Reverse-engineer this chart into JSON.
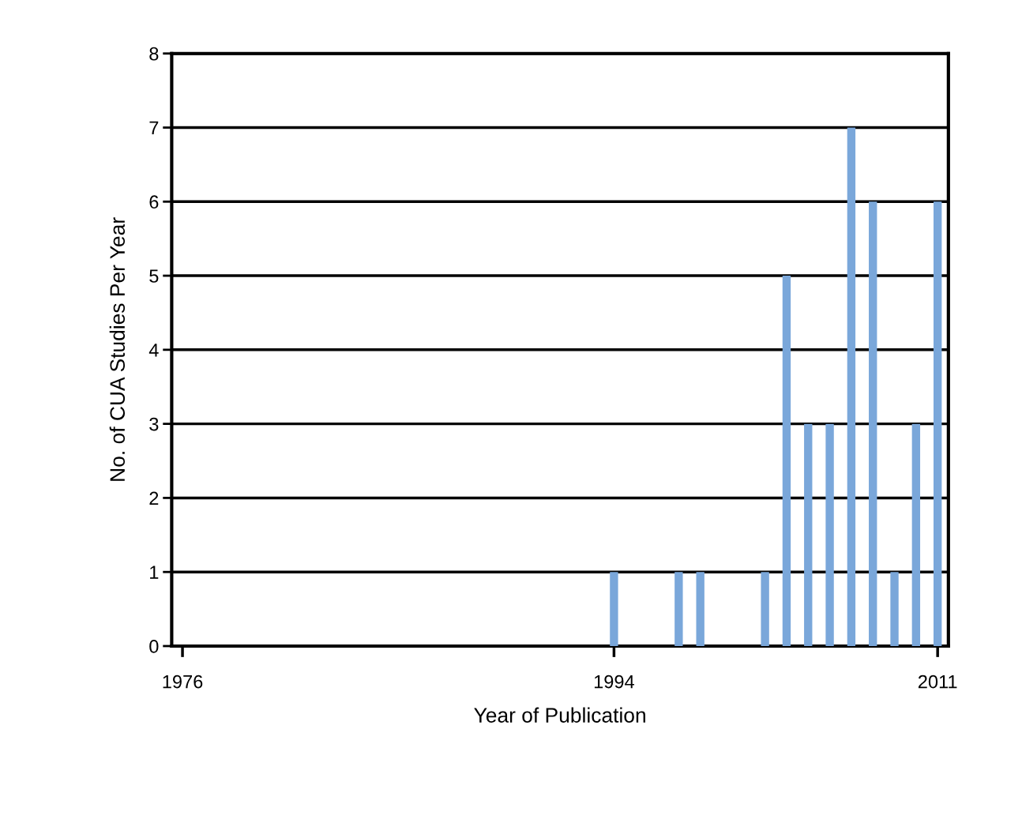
{
  "chart_data": {
    "type": "bar",
    "xlabel": "Year of Publication",
    "ylabel": "No. of CUA Studies Per Year",
    "categories": [
      "1976",
      null,
      null,
      null,
      null,
      null,
      null,
      null,
      null,
      null,
      null,
      null,
      null,
      null,
      null,
      null,
      null,
      null,
      null,
      null,
      "1994",
      null,
      null,
      null,
      null,
      null,
      null,
      null,
      null,
      null,
      null,
      null,
      null,
      null,
      null,
      "2011"
    ],
    "values": [
      null,
      null,
      null,
      null,
      null,
      null,
      null,
      null,
      null,
      null,
      null,
      null,
      null,
      null,
      null,
      null,
      null,
      null,
      null,
      null,
      1,
      null,
      null,
      1,
      1,
      null,
      null,
      1,
      5,
      3,
      3,
      7,
      6,
      1,
      3,
      6
    ],
    "color": "#7aa7da",
    "ylim": [
      0,
      8
    ],
    "yticks": [
      0,
      1,
      2,
      3,
      4,
      5,
      6,
      7,
      8
    ],
    "grid": "y"
  }
}
